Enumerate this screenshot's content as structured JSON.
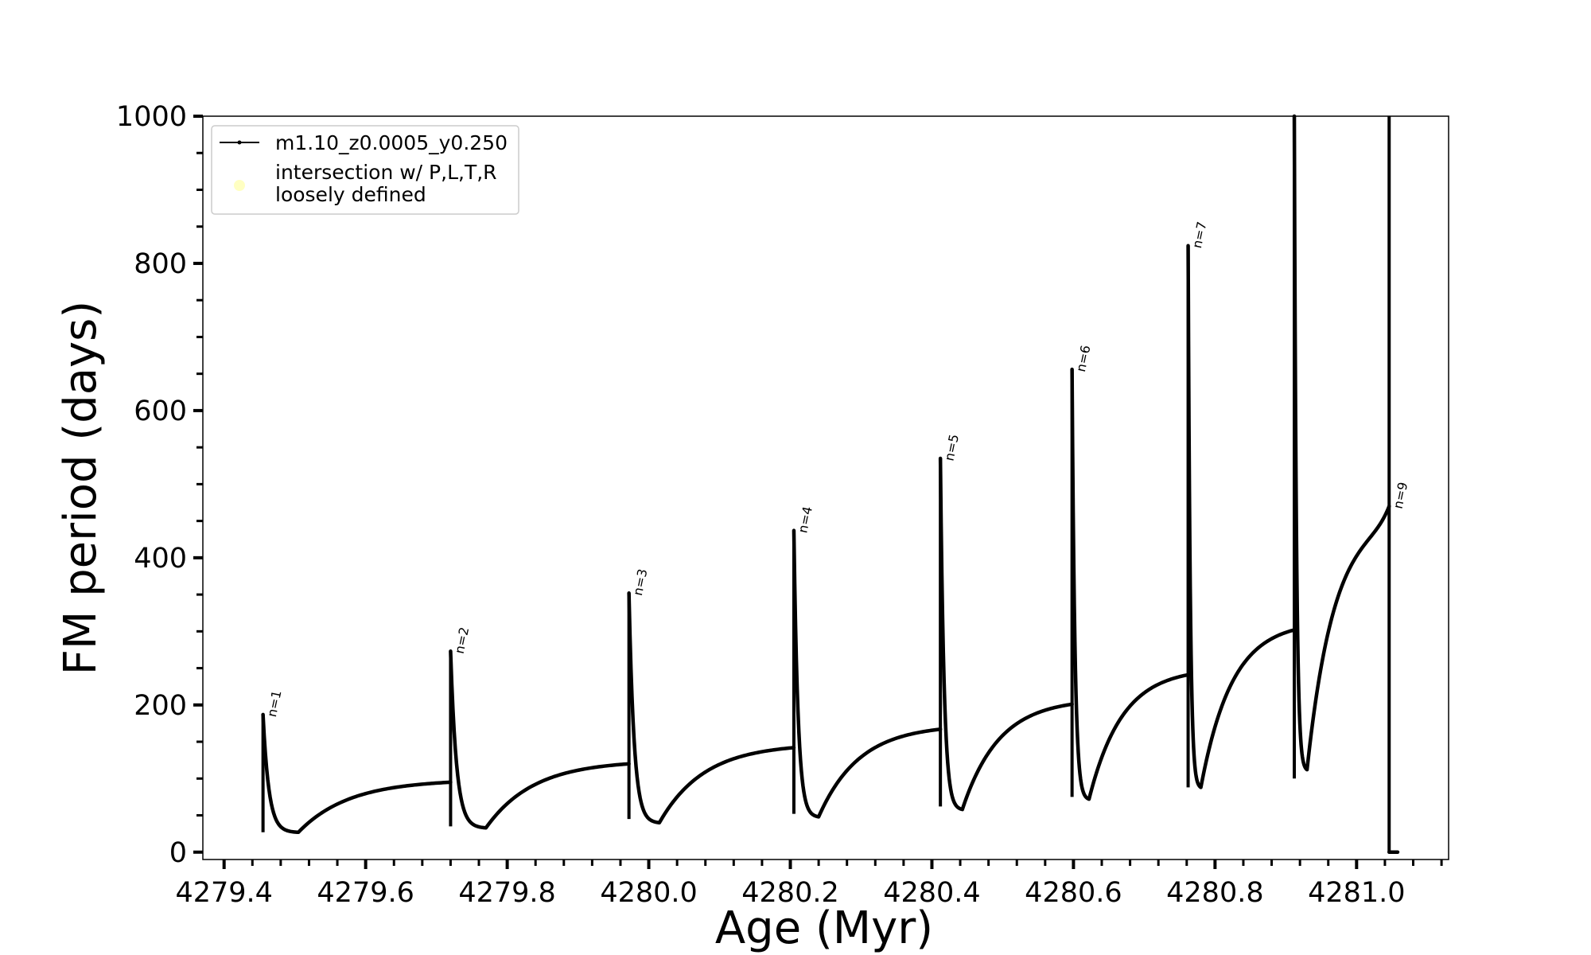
{
  "chart_data": {
    "type": "line",
    "xlabel": "Age (Myr)",
    "ylabel": "FM period (days)",
    "xlim": [
      4279.37,
      4281.13
    ],
    "ylim": [
      -10,
      1000
    ],
    "x_ticks": [
      4279.4,
      4279.6,
      4279.8,
      4280.0,
      4280.2,
      4280.4,
      4280.6,
      4280.8,
      4281.0
    ],
    "x_tick_labels": [
      "4279.4",
      "4279.6",
      "4279.8",
      "4280.0",
      "4280.2",
      "4280.4",
      "4280.6",
      "4280.8",
      "4281.0"
    ],
    "x_minor_step": 0.04,
    "y_ticks": [
      0,
      200,
      400,
      600,
      800,
      1000
    ],
    "y_tick_labels": [
      "0",
      "200",
      "400",
      "600",
      "800",
      "1000"
    ],
    "y_minor_step": 50,
    "grid": false,
    "legend": {
      "position": "top-left",
      "entries": [
        {
          "label": "m1.10_z0.0005_y0.250",
          "marker": "line-dot",
          "color": "#000000"
        },
        {
          "label_lines": [
            "intersection w/ P,L,T,R",
            "loosely defined"
          ],
          "marker": "circle",
          "color": "#ffff99"
        }
      ]
    },
    "series": [
      {
        "name": "m1.10_z0.0005_y0.250",
        "color": "#000000",
        "cycles": [
          {
            "spike_x": 4279.455,
            "spike_top": 187,
            "spike_bottom": 27,
            "min_x": 4279.505,
            "min_y": 27,
            "end_x": 4279.72,
            "end_y": 95
          },
          {
            "spike_x": 4279.72,
            "spike_top": 273,
            "spike_bottom": 35,
            "min_x": 4279.77,
            "min_y": 33,
            "end_x": 4279.972,
            "end_y": 120
          },
          {
            "spike_x": 4279.972,
            "spike_top": 352,
            "spike_bottom": 45,
            "min_x": 4280.015,
            "min_y": 40,
            "end_x": 4280.205,
            "end_y": 142
          },
          {
            "spike_x": 4280.205,
            "spike_top": 437,
            "spike_bottom": 52,
            "min_x": 4280.24,
            "min_y": 48,
            "end_x": 4280.412,
            "end_y": 167
          },
          {
            "spike_x": 4280.412,
            "spike_top": 535,
            "spike_bottom": 62,
            "min_x": 4280.443,
            "min_y": 58,
            "end_x": 4280.598,
            "end_y": 201
          },
          {
            "spike_x": 4280.598,
            "spike_top": 656,
            "spike_bottom": 75,
            "min_x": 4280.622,
            "min_y": 72,
            "end_x": 4280.762,
            "end_y": 241
          },
          {
            "spike_x": 4280.762,
            "spike_top": 824,
            "spike_bottom": 88,
            "min_x": 4280.78,
            "min_y": 88,
            "end_x": 4280.912,
            "end_y": 302
          },
          {
            "spike_x": 4280.912,
            "spike_top": 1000,
            "spike_bottom": 100,
            "min_x": 4280.93,
            "min_y": 112,
            "end_x": 4281.046,
            "end_y": 470
          },
          {
            "spike_x": 4281.046,
            "spike_top": 1000,
            "spike_bottom": 0,
            "min_x": 4281.046,
            "min_y": 0,
            "end_x": 4281.058,
            "end_y": 0
          }
        ]
      }
    ],
    "annotations": [
      {
        "text": "n=1",
        "x": 4279.455,
        "y": 187
      },
      {
        "text": "n=2",
        "x": 4279.72,
        "y": 273
      },
      {
        "text": "n=3",
        "x": 4279.972,
        "y": 352
      },
      {
        "text": "n=4",
        "x": 4280.205,
        "y": 437
      },
      {
        "text": "n=5",
        "x": 4280.412,
        "y": 535
      },
      {
        "text": "n=6",
        "x": 4280.598,
        "y": 656
      },
      {
        "text": "n=7",
        "x": 4280.762,
        "y": 824
      },
      {
        "text": "n=9",
        "x": 4281.046,
        "y": 470
      }
    ]
  }
}
